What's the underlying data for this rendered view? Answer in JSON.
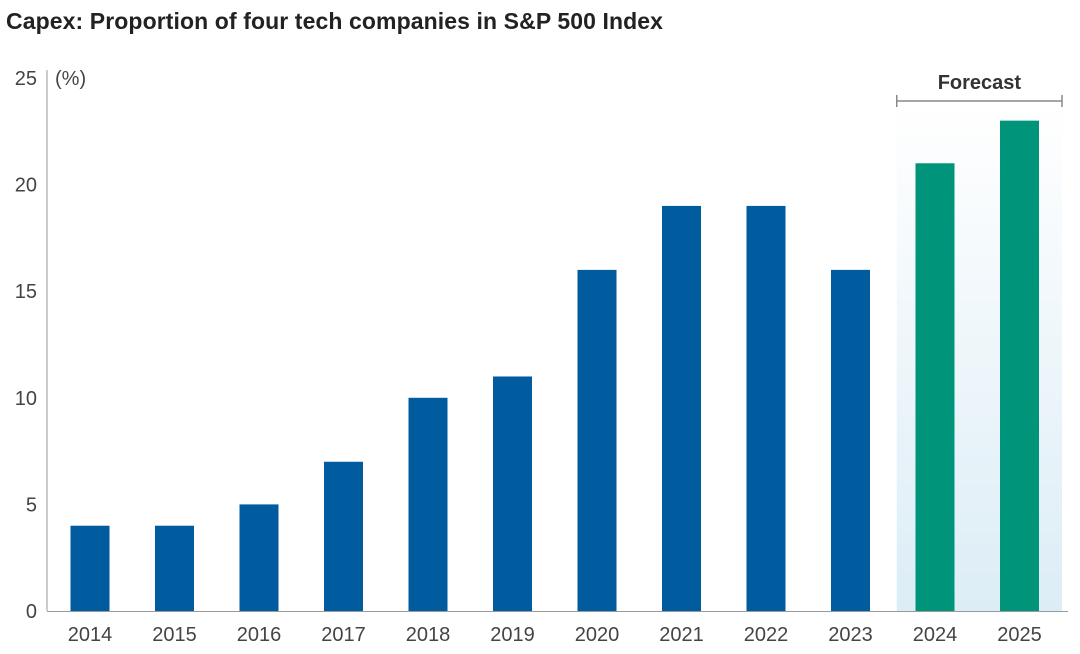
{
  "chart_data": {
    "type": "bar",
    "title": "Capex: Proportion of four tech companies in S&P 500 Index",
    "ylabel": "(%)",
    "xlabel": "",
    "ylim": [
      0,
      25
    ],
    "yticks": [
      0,
      5,
      10,
      15,
      20,
      25
    ],
    "categories": [
      "2014",
      "2015",
      "2016",
      "2017",
      "2018",
      "2019",
      "2020",
      "2021",
      "2022",
      "2023",
      "2024",
      "2025"
    ],
    "values": [
      4,
      4,
      5,
      7,
      10,
      11,
      16,
      19,
      19,
      16,
      21,
      23
    ],
    "forecast": {
      "label": "Forecast",
      "categories": [
        "2024",
        "2025"
      ]
    },
    "colors": {
      "actual": "#005b9f",
      "forecast": "#00957a",
      "forecast_bg": "#e3f1f8"
    },
    "grid": false,
    "legend": "none"
  }
}
